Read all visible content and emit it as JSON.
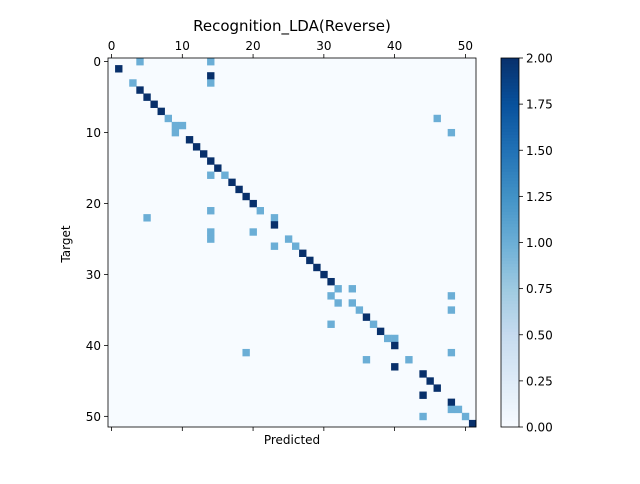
{
  "chart_data": {
    "type": "heatmap",
    "title": "Recognition_LDA(Reverse)",
    "xlabel": "Predicted",
    "ylabel": "Target",
    "x_ticks": [
      0,
      10,
      20,
      30,
      40,
      50
    ],
    "y_ticks": [
      0,
      10,
      20,
      30,
      40,
      50
    ],
    "n_classes": 52,
    "x_tick_labels_position": "top",
    "colormap": "Blues",
    "colorbar": {
      "vmin": 0.0,
      "vmax": 2.0,
      "ticks": [
        "0.00",
        "0.25",
        "0.50",
        "0.75",
        "1.00",
        "1.25",
        "1.50",
        "1.75",
        "2.00"
      ]
    },
    "grid": false,
    "cells": [
      [
        0,
        4,
        1
      ],
      [
        0,
        14,
        1
      ],
      [
        1,
        1,
        2
      ],
      [
        2,
        14,
        2
      ],
      [
        3,
        3,
        1
      ],
      [
        3,
        14,
        1
      ],
      [
        4,
        4,
        2
      ],
      [
        5,
        5,
        2
      ],
      [
        6,
        6,
        2
      ],
      [
        7,
        7,
        2
      ],
      [
        8,
        8,
        1
      ],
      [
        8,
        46,
        1
      ],
      [
        9,
        9,
        1
      ],
      [
        9,
        10,
        1
      ],
      [
        10,
        9,
        1
      ],
      [
        10,
        48,
        1
      ],
      [
        11,
        11,
        2
      ],
      [
        12,
        12,
        2
      ],
      [
        13,
        13,
        2
      ],
      [
        14,
        14,
        2
      ],
      [
        15,
        15,
        2
      ],
      [
        16,
        14,
        1
      ],
      [
        16,
        16,
        1
      ],
      [
        17,
        17,
        2
      ],
      [
        18,
        18,
        2
      ],
      [
        19,
        19,
        2
      ],
      [
        20,
        20,
        2
      ],
      [
        21,
        14,
        1
      ],
      [
        21,
        21,
        1
      ],
      [
        22,
        5,
        1
      ],
      [
        22,
        23,
        1
      ],
      [
        23,
        23,
        2
      ],
      [
        24,
        14,
        1
      ],
      [
        24,
        20,
        1
      ],
      [
        25,
        14,
        1
      ],
      [
        25,
        25,
        1
      ],
      [
        26,
        23,
        1
      ],
      [
        26,
        26,
        1
      ],
      [
        27,
        27,
        2
      ],
      [
        28,
        28,
        2
      ],
      [
        29,
        29,
        2
      ],
      [
        30,
        30,
        2
      ],
      [
        31,
        31,
        2
      ],
      [
        32,
        32,
        1
      ],
      [
        32,
        34,
        1
      ],
      [
        33,
        31,
        1
      ],
      [
        33,
        48,
        1
      ],
      [
        34,
        32,
        1
      ],
      [
        34,
        34,
        1
      ],
      [
        35,
        35,
        1
      ],
      [
        35,
        48,
        1
      ],
      [
        36,
        36,
        2
      ],
      [
        37,
        31,
        1
      ],
      [
        37,
        37,
        1
      ],
      [
        38,
        38,
        2
      ],
      [
        39,
        39,
        1
      ],
      [
        39,
        40,
        1
      ],
      [
        40,
        40,
        2
      ],
      [
        41,
        19,
        1
      ],
      [
        41,
        48,
        1
      ],
      [
        42,
        36,
        1
      ],
      [
        42,
        42,
        1
      ],
      [
        43,
        40,
        2
      ],
      [
        44,
        44,
        2
      ],
      [
        45,
        45,
        2
      ],
      [
        46,
        46,
        2
      ],
      [
        47,
        44,
        2
      ],
      [
        48,
        48,
        2
      ],
      [
        49,
        48,
        1
      ],
      [
        49,
        49,
        1
      ],
      [
        50,
        44,
        1
      ],
      [
        50,
        50,
        1
      ],
      [
        51,
        51,
        2
      ]
    ]
  }
}
